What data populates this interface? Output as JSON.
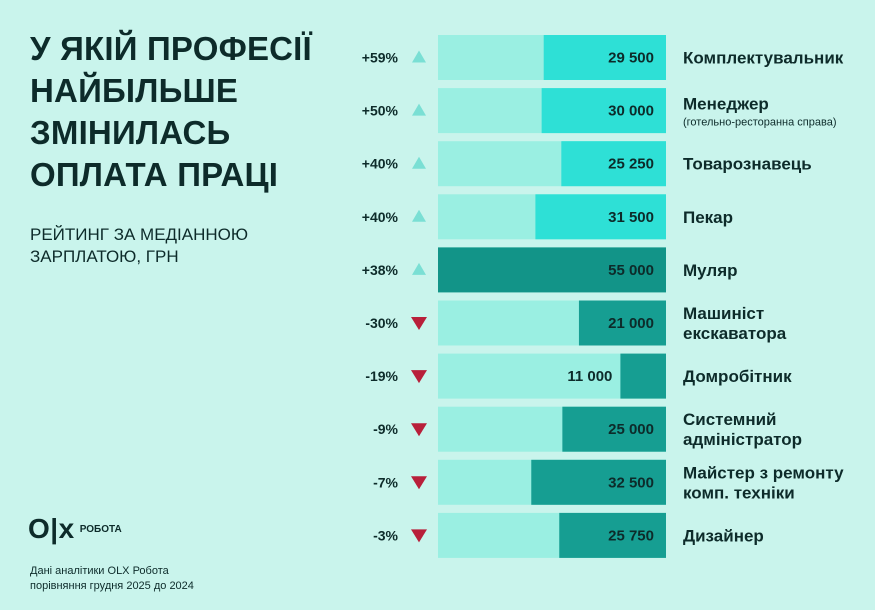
{
  "title_lines": [
    "У ЯКІЙ ПРОФЕСІЇ",
    "НАЙБІЛЬШЕ",
    "ЗМІНИЛАСЬ",
    "ОПЛАТА ПРАЦІ"
  ],
  "subtitle_lines": [
    "РЕЙТИНГ ЗА МЕДІАННОЮ",
    "ЗАРПЛАТОЮ, ГРН"
  ],
  "logo": {
    "mark": "O|x",
    "text": "РОБОТА"
  },
  "footnote_lines": [
    "Дані аналітики OLX Робота",
    "порівняння грудня 2025 до 2024"
  ],
  "colors": {
    "background": "#c9f4ec",
    "track": "#9aefe2",
    "bar_up": "#2ee0d6",
    "bar_down": "#169e92",
    "bar_highlight": "#129488",
    "arrow_up": "#7adfd4",
    "arrow_down": "#b81f3a",
    "text": "#0d2b2a"
  },
  "chart_data": {
    "type": "bar",
    "orientation": "horizontal",
    "units": "грн",
    "rows": [
      {
        "change": "+59%",
        "direction": "up",
        "value": 29500,
        "value_label": "29 500",
        "label": [
          "Комплектувальник"
        ]
      },
      {
        "change": "+50%",
        "direction": "up",
        "value": 30000,
        "value_label": "30 000",
        "label": [
          "Менеджер"
        ],
        "sublabel": "(готельно-ресторанна справа)"
      },
      {
        "change": "+40%",
        "direction": "up",
        "value": 25250,
        "value_label": "25 250",
        "label": [
          "Товарознавець"
        ]
      },
      {
        "change": "+40%",
        "direction": "up",
        "value": 31500,
        "value_label": "31 500",
        "label": [
          "Пекар"
        ]
      },
      {
        "change": "+38%",
        "direction": "up",
        "value": 55000,
        "value_label": "55 000",
        "label": [
          "Муляр"
        ],
        "highlight": true
      },
      {
        "change": "-30%",
        "direction": "down",
        "value": 21000,
        "value_label": "21 000",
        "label": [
          "Машиніст",
          "екскаватора"
        ]
      },
      {
        "change": "-19%",
        "direction": "down",
        "value": 11000,
        "value_label": "11 000",
        "label": [
          "Домробітник"
        ]
      },
      {
        "change": "-9%",
        "direction": "down",
        "value": 25000,
        "value_label": "25 000",
        "label": [
          "Системний",
          "адміністратор"
        ]
      },
      {
        "change": "-7%",
        "direction": "down",
        "value": 32500,
        "value_label": "32 500",
        "label": [
          "Майстер з ремонту",
          "комп. техніки"
        ]
      },
      {
        "change": "-3%",
        "direction": "down",
        "value": 25750,
        "value_label": "25 750",
        "label": [
          "Дизайнер"
        ]
      }
    ]
  }
}
